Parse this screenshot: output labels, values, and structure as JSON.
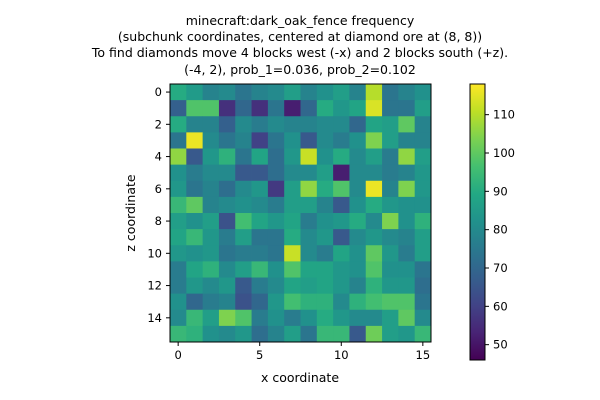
{
  "chart_data": {
    "type": "heatmap",
    "title_lines": [
      "minecraft:dark_oak_fence frequency",
      "(subchunk coordinates, centered at diamond ore at (8, 8))",
      "To find diamonds move 4 blocks west (-x) and 2 blocks south (+z).",
      "(-4, 2), prob_1=0.036, prob_2=0.102"
    ],
    "xlabel": "x coordinate",
    "ylabel": "z coordinate",
    "x_ticks": [
      0,
      5,
      10,
      15
    ],
    "y_ticks": [
      0,
      2,
      4,
      6,
      8,
      10,
      12,
      14
    ],
    "colorbar_ticks": [
      50,
      60,
      70,
      80,
      90,
      100,
      110
    ],
    "colorbar_range": [
      46,
      118
    ],
    "colormap": "viridis",
    "grid": [
      [
        90,
        85,
        78,
        80,
        74,
        78,
        80,
        86,
        78,
        82,
        86,
        78,
        110,
        74,
        78,
        82
      ],
      [
        68,
        98,
        98,
        56,
        70,
        56,
        74,
        52,
        70,
        90,
        84,
        88,
        114,
        74,
        74,
        86
      ],
      [
        90,
        78,
        78,
        68,
        80,
        76,
        80,
        78,
        78,
        80,
        80,
        70,
        88,
        86,
        100,
        78
      ],
      [
        74,
        116,
        80,
        74,
        78,
        60,
        74,
        82,
        66,
        80,
        76,
        82,
        104,
        86,
        78,
        78
      ],
      [
        106,
        66,
        84,
        92,
        74,
        88,
        72,
        84,
        112,
        82,
        90,
        80,
        86,
        76,
        106,
        86
      ],
      [
        82,
        76,
        80,
        80,
        66,
        66,
        72,
        80,
        80,
        86,
        52,
        80,
        80,
        76,
        78,
        84
      ],
      [
        84,
        74,
        78,
        72,
        80,
        84,
        58,
        86,
        106,
        90,
        98,
        80,
        116,
        78,
        104,
        84
      ],
      [
        94,
        100,
        78,
        80,
        82,
        80,
        76,
        86,
        86,
        78,
        66,
        82,
        90,
        84,
        82,
        82
      ],
      [
        86,
        82,
        86,
        64,
        96,
        88,
        84,
        88,
        76,
        82,
        84,
        90,
        80,
        104,
        82,
        92
      ],
      [
        88,
        94,
        84,
        76,
        86,
        74,
        74,
        90,
        80,
        84,
        66,
        80,
        84,
        80,
        78,
        86
      ],
      [
        84,
        82,
        84,
        74,
        76,
        76,
        74,
        112,
        80,
        76,
        88,
        82,
        100,
        84,
        76,
        86
      ],
      [
        76,
        88,
        92,
        80,
        86,
        94,
        82,
        98,
        88,
        88,
        84,
        82,
        98,
        82,
        82,
        74
      ],
      [
        76,
        84,
        80,
        84,
        66,
        76,
        80,
        88,
        86,
        88,
        84,
        78,
        92,
        84,
        84,
        72
      ],
      [
        82,
        70,
        76,
        78,
        64,
        70,
        84,
        96,
        92,
        92,
        80,
        92,
        96,
        98,
        98,
        74
      ],
      [
        80,
        94,
        86,
        104,
        98,
        76,
        82,
        76,
        82,
        90,
        84,
        80,
        80,
        86,
        100,
        80
      ],
      [
        94,
        92,
        82,
        80,
        84,
        72,
        78,
        86,
        74,
        94,
        94,
        66,
        102,
        86,
        84,
        94
      ]
    ]
  }
}
